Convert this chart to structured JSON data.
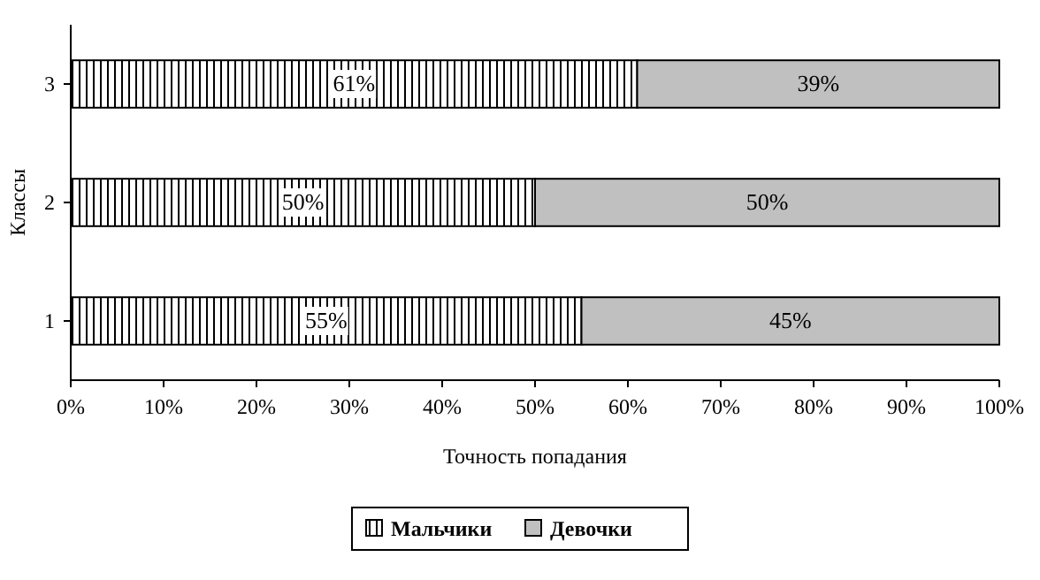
{
  "chart_data": {
    "type": "bar",
    "orientation": "horizontal",
    "stacked": true,
    "categories": [
      "3",
      "2",
      "1"
    ],
    "series": [
      {
        "name": "Мальчики",
        "color": "#000000",
        "values": [
          61,
          50,
          55
        ],
        "value_labels": [
          "61%",
          "50%",
          "55%"
        ]
      },
      {
        "name": "Девочки",
        "color": "#c0c0c0",
        "values": [
          39,
          50,
          45
        ],
        "value_labels": [
          "39%",
          "50%",
          "45%"
        ]
      }
    ],
    "xlim": [
      0,
      100
    ],
    "xticks": [
      {
        "value": 0,
        "label": "0%"
      },
      {
        "value": 10,
        "label": "10%"
      },
      {
        "value": 20,
        "label": "20%"
      },
      {
        "value": 30,
        "label": "30%"
      },
      {
        "value": 40,
        "label": "40%"
      },
      {
        "value": 50,
        "label": "50%"
      },
      {
        "value": 60,
        "label": "60%"
      },
      {
        "value": 70,
        "label": "70%"
      },
      {
        "value": 80,
        "label": "80%"
      },
      {
        "value": 90,
        "label": "90%"
      },
      {
        "value": 100,
        "label": "100%"
      }
    ],
    "xlabel": "Точность попадания",
    "ylabel": "Классы",
    "legend": "bottom",
    "grid": false
  }
}
